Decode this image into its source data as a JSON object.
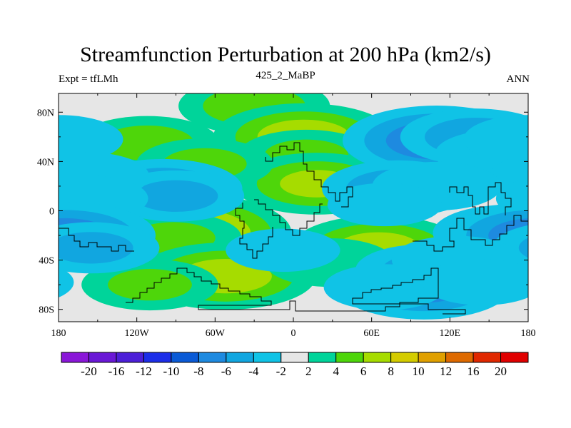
{
  "figure": {
    "title": "Streamfunction Perturbation at 200 hPa (km2/s)",
    "left_label": "Expt = tfLMh",
    "center_label": "425_2_MaBP",
    "right_label": "ANN"
  },
  "chart_data": {
    "type": "heatmap",
    "title": "Streamfunction Perturbation at 200 hPa (km2/s)",
    "xlabel": "",
    "ylabel": "",
    "xlim": [
      -180,
      180
    ],
    "ylim": [
      -90,
      90
    ],
    "x_ticks": [
      {
        "value": -180,
        "label": "180"
      },
      {
        "value": -120,
        "label": "120W"
      },
      {
        "value": -60,
        "label": "60W"
      },
      {
        "value": 0,
        "label": "0"
      },
      {
        "value": 60,
        "label": "60E"
      },
      {
        "value": 120,
        "label": "120E"
      },
      {
        "value": 180,
        "label": "180"
      }
    ],
    "y_ticks": [
      {
        "value": 80,
        "label": "80N"
      },
      {
        "value": 40,
        "label": "40N"
      },
      {
        "value": 0,
        "label": "0"
      },
      {
        "value": -40,
        "label": "40S"
      },
      {
        "value": -80,
        "label": "80S"
      }
    ],
    "background_color": "#e6e6e6",
    "colorbar": {
      "labels": [
        "-20",
        "-16",
        "-12",
        "-10",
        "-8",
        "-6",
        "-4",
        "-2",
        "2",
        "4",
        "6",
        "8",
        "10",
        "12",
        "16",
        "20"
      ],
      "colors": [
        "#8a17d8",
        "#6a18d6",
        "#4c1fd8",
        "#1c2ee8",
        "#0a5ad6",
        "#1e8ae0",
        "#11a6e0",
        "#10c3e6",
        "#e6e6e6",
        "#00d49a",
        "#4ed60a",
        "#a6dc00",
        "#d4cc00",
        "#e0a000",
        "#de6a00",
        "#e02800",
        "#e00000"
      ]
    },
    "anomalies": [
      {
        "lon": -112,
        "lat": 55,
        "value": 4.5
      },
      {
        "lon": -30,
        "lat": 85,
        "value": 5
      },
      {
        "lon": 8,
        "lat": 60,
        "value": 7
      },
      {
        "lon": 10,
        "lat": 45,
        "value": 4
      },
      {
        "lon": 18,
        "lat": 22,
        "value": 6
      },
      {
        "lon": -68,
        "lat": 38,
        "value": 4
      },
      {
        "lon": -85,
        "lat": -18,
        "value": 9.5
      },
      {
        "lon": -92,
        "lat": -22,
        "value": 4
      },
      {
        "lon": -52,
        "lat": -53,
        "value": 7
      },
      {
        "lon": -110,
        "lat": -60,
        "value": 4
      },
      {
        "lon": 65,
        "lat": -30,
        "value": 6.5
      },
      {
        "lon": 28,
        "lat": -42,
        "value": 3.5
      },
      {
        "lon": 125,
        "lat": 40,
        "value": 3
      },
      {
        "lon": 110,
        "lat": 57,
        "value": -7.5
      },
      {
        "lon": 140,
        "lat": 60,
        "value": -5
      },
      {
        "lon": 158,
        "lat": 46,
        "value": -3.5
      },
      {
        "lon": -180,
        "lat": 58,
        "value": -3.5
      },
      {
        "lon": -100,
        "lat": 18,
        "value": -5.5
      },
      {
        "lon": -90,
        "lat": 12,
        "value": -4
      },
      {
        "lon": -160,
        "lat": 28,
        "value": -3.5
      },
      {
        "lon": -158,
        "lat": 10,
        "value": -3
      },
      {
        "lon": 80,
        "lat": 18,
        "value": -5
      },
      {
        "lon": 110,
        "lat": 20,
        "value": -3.5
      },
      {
        "lon": 70,
        "lat": 5,
        "value": -2.5
      },
      {
        "lon": 165,
        "lat": -18,
        "value": -5
      },
      {
        "lon": -175,
        "lat": -20,
        "value": -7
      },
      {
        "lon": -155,
        "lat": -30,
        "value": -4
      },
      {
        "lon": -8,
        "lat": -32,
        "value": -2.5
      },
      {
        "lon": 100,
        "lat": -62,
        "value": -6.5
      },
      {
        "lon": 100,
        "lat": -48,
        "value": -4
      },
      {
        "lon": 125,
        "lat": -40,
        "value": -3.5
      },
      {
        "lon": 70,
        "lat": -62,
        "value": -3
      },
      {
        "lon": 145,
        "lat": -58,
        "value": -3
      }
    ]
  }
}
